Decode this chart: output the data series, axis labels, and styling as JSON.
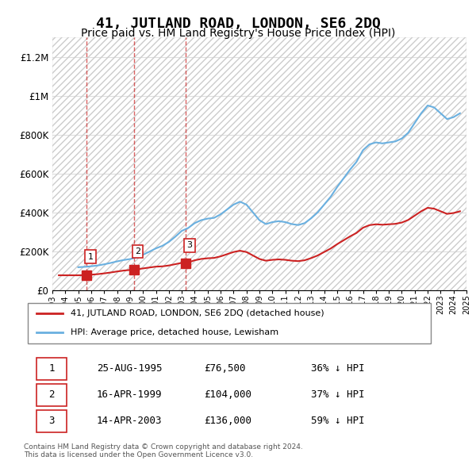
{
  "title": "41, JUTLAND ROAD, LONDON, SE6 2DQ",
  "subtitle": "Price paid vs. HM Land Registry's House Price Index (HPI)",
  "title_fontsize": 13,
  "subtitle_fontsize": 10,
  "ylim": [
    0,
    1300000
  ],
  "yticks": [
    0,
    200000,
    400000,
    600000,
    800000,
    1000000,
    1200000
  ],
  "ytick_labels": [
    "£0",
    "£200K",
    "£400K",
    "£600K",
    "£800K",
    "£1M",
    "£1.2M"
  ],
  "hpi_color": "#6ab0e0",
  "price_color": "#cc2222",
  "hatch_color": "#cccccc",
  "grid_color": "#dddddd",
  "transactions": [
    {
      "date": 1995.65,
      "price": 76500,
      "label": "1"
    },
    {
      "date": 1999.29,
      "price": 104000,
      "label": "2"
    },
    {
      "date": 2003.29,
      "price": 136000,
      "label": "3"
    }
  ],
  "vline_dates": [
    1995.65,
    1999.29,
    2003.29
  ],
  "legend_entries": [
    "41, JUTLAND ROAD, LONDON, SE6 2DQ (detached house)",
    "HPI: Average price, detached house, Lewisham"
  ],
  "table_rows": [
    {
      "num": "1",
      "date": "25-AUG-1995",
      "price": "£76,500",
      "pct": "36% ↓ HPI"
    },
    {
      "num": "2",
      "date": "16-APR-1999",
      "price": "£104,000",
      "pct": "37% ↓ HPI"
    },
    {
      "num": "3",
      "date": "14-APR-2003",
      "price": "£136,000",
      "pct": "59% ↓ HPI"
    }
  ],
  "footer": "Contains HM Land Registry data © Crown copyright and database right 2024.\nThis data is licensed under the Open Government Licence v3.0.",
  "xmin": 1993,
  "xmax": 2025
}
